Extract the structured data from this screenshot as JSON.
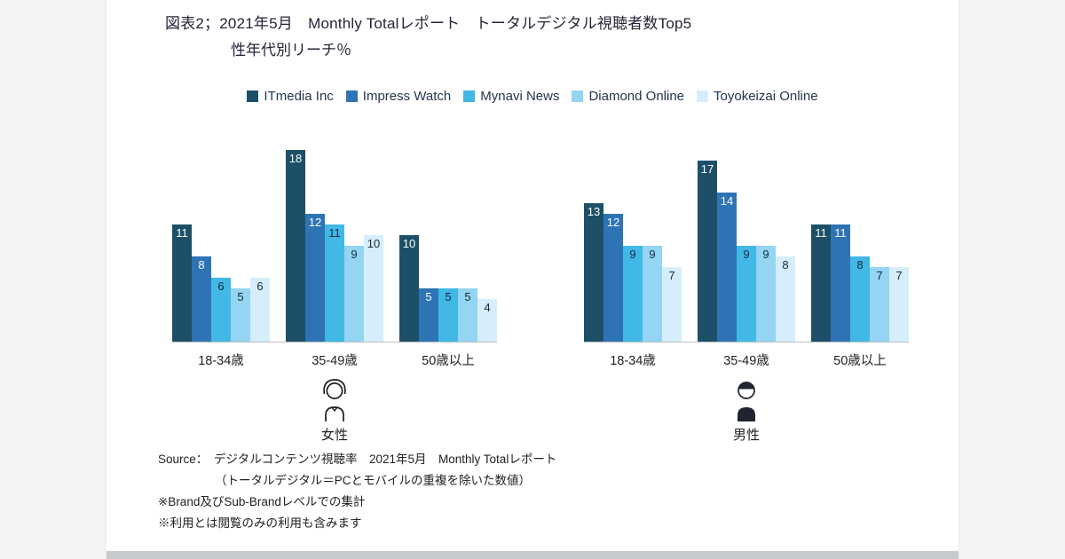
{
  "page": {
    "title": "図表2；2021年5月　Monthly Totalレポート　トータルデジタル視聴者数Top5",
    "subtitle": "性年代別リーチ％"
  },
  "legend": {
    "items": [
      {
        "label": "ITmedia Inc",
        "color": "#1d5068",
        "label_color": "#ffffff"
      },
      {
        "label": "Impress Watch",
        "color": "#2e74b5",
        "label_color": "#ffffff"
      },
      {
        "label": "Mynavi News",
        "color": "#41b8e6",
        "label_color": "#17293a"
      },
      {
        "label": "Diamond Online",
        "color": "#93d5f2",
        "label_color": "#17293a"
      },
      {
        "label": "Toyokeizai Online",
        "color": "#d6eefb",
        "label_color": "#17293a"
      }
    ]
  },
  "chart_data": {
    "type": "bar",
    "title": "図表2；2021年5月 Monthly Totalレポート トータルデジタル視聴者数Top5 性年代別リーチ％",
    "ylabel": "リーチ%",
    "ylim": [
      0,
      18
    ],
    "grid": false,
    "legend_position": "top",
    "categories": [
      "18-34歳",
      "35-49歳",
      "50歳以上"
    ],
    "groups": [
      {
        "name": "女性",
        "series": [
          {
            "name": "ITmedia Inc",
            "values": [
              11,
              18,
              10
            ]
          },
          {
            "name": "Impress Watch",
            "values": [
              8,
              12,
              5
            ]
          },
          {
            "name": "Mynavi News",
            "values": [
              6,
              11,
              5
            ]
          },
          {
            "name": "Diamond Online",
            "values": [
              5,
              9,
              5
            ]
          },
          {
            "name": "Toyokeizai Online",
            "values": [
              6,
              10,
              4
            ]
          }
        ]
      },
      {
        "name": "男性",
        "series": [
          {
            "name": "ITmedia Inc",
            "values": [
              13,
              17,
              11
            ]
          },
          {
            "name": "Impress Watch",
            "values": [
              12,
              14,
              11
            ]
          },
          {
            "name": "Mynavi News",
            "values": [
              9,
              9,
              8
            ]
          },
          {
            "name": "Diamond Online",
            "values": [
              9,
              9,
              7
            ]
          },
          {
            "name": "Toyokeizai Online",
            "values": [
              7,
              8,
              7
            ]
          }
        ]
      }
    ]
  },
  "icons": {
    "female": "female-person-icon",
    "male": "male-person-icon"
  },
  "source": {
    "line1": "Source：　デジタルコンテンツ視聴率　2021年5月　Monthly Totalレポート",
    "line2": "（トータルデジタル＝PCとモバイルの重複を除いた数値）",
    "line3": "※Brand及びSub-Brandレベルでの集計",
    "line4": "※利用とは閲覧のみの利用も含みます"
  }
}
